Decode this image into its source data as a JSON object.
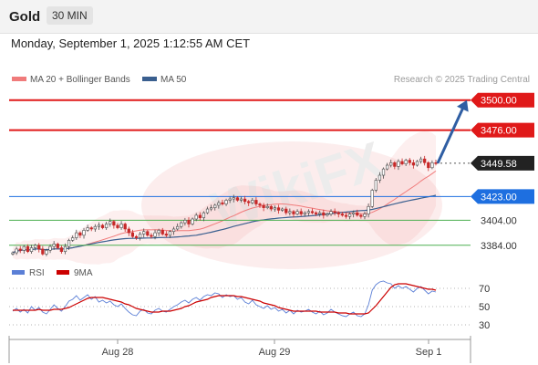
{
  "header": {
    "symbol": "Gold",
    "timeframe": "30 MIN"
  },
  "datetime": "Monday, September 1, 2025 1:12:55 AM CET",
  "legend": {
    "bollinger": {
      "label": "MA 20 + Bollinger Bands",
      "color": "#f07b7b"
    },
    "ma50": {
      "label": "MA 50",
      "color": "#3a5f8f"
    },
    "credit": "Research © 2025 Trading Central"
  },
  "indicator_legend": {
    "rsi": {
      "label": "RSI",
      "color": "#5b7fd6"
    },
    "ma9": {
      "label": "9MA",
      "color": "#cc0000"
    }
  },
  "watermark": "WikiFX",
  "chart_data": [
    {
      "type": "candlestick",
      "title": "",
      "y_range": [
        3370,
        3510
      ],
      "x_ticks": [
        "Aug 28",
        "Aug 29",
        "Sep 1"
      ],
      "levels": [
        {
          "value": 3500.0,
          "label": "3500.00",
          "color": "#e01919",
          "style": "resistance"
        },
        {
          "value": 3476.0,
          "label": "3476.00",
          "color": "#e01919",
          "style": "resistance"
        },
        {
          "value": 3449.58,
          "label": "3449.58",
          "color": "#222222",
          "style": "last-price"
        },
        {
          "value": 3423.0,
          "label": "3423.00",
          "color": "#1e6fe0",
          "style": "pivot"
        },
        {
          "value": 3404.0,
          "label": "3404.00",
          "color": "#4caf50",
          "style": "support"
        },
        {
          "value": 3384.0,
          "label": "3384.00",
          "color": "#4caf50",
          "style": "support"
        }
      ],
      "close_series": [
        3378,
        3381,
        3380,
        3383,
        3379,
        3382,
        3384,
        3381,
        3377,
        3380,
        3383,
        3385,
        3382,
        3379,
        3383,
        3388,
        3390,
        3394,
        3392,
        3396,
        3398,
        3397,
        3399,
        3400,
        3398,
        3401,
        3403,
        3400,
        3398,
        3401,
        3397,
        3394,
        3391,
        3390,
        3393,
        3395,
        3392,
        3391,
        3394,
        3396,
        3393,
        3392,
        3395,
        3397,
        3399,
        3402,
        3404,
        3401,
        3405,
        3408,
        3406,
        3410,
        3413,
        3414,
        3416,
        3418,
        3417,
        3420,
        3421,
        3422,
        3420,
        3421,
        3419,
        3418,
        3420,
        3417,
        3416,
        3414,
        3415,
        3413,
        3414,
        3412,
        3413,
        3410,
        3411,
        3409,
        3411,
        3409,
        3410,
        3411,
        3410,
        3409,
        3410,
        3408,
        3409,
        3411,
        3410,
        3409,
        3408,
        3407,
        3409,
        3410,
        3408,
        3407,
        3409,
        3415,
        3428,
        3436,
        3440,
        3445,
        3448,
        3450,
        3447,
        3451,
        3449,
        3452,
        3450,
        3448,
        3451,
        3453,
        3450,
        3446,
        3450,
        3449.58
      ],
      "forecast_arrow": {
        "from": 3449.58,
        "to": 3500
      }
    },
    {
      "type": "line",
      "title": "",
      "y_range": [
        20,
        80
      ],
      "y_ticks": [
        70,
        50,
        30
      ],
      "series": [
        {
          "name": "RSI",
          "values": [
            45,
            48,
            44,
            47,
            43,
            50,
            46,
            49,
            44,
            42,
            47,
            52,
            48,
            45,
            50,
            56,
            58,
            62,
            57,
            60,
            63,
            58,
            61,
            55,
            57,
            54,
            56,
            52,
            50,
            53,
            48,
            44,
            41,
            40,
            45,
            47,
            43,
            42,
            46,
            48,
            45,
            44,
            47,
            50,
            52,
            55,
            57,
            54,
            58,
            60,
            57,
            61,
            63,
            62,
            65,
            64,
            60,
            63,
            61,
            62,
            58,
            60,
            55,
            53,
            57,
            52,
            50,
            48,
            51,
            47,
            49,
            45,
            47,
            43,
            46,
            42,
            46,
            44,
            45,
            47,
            44,
            42,
            45,
            41,
            43,
            47,
            44,
            42,
            40,
            39,
            42,
            44,
            40,
            39,
            42,
            52,
            68,
            74,
            77,
            78,
            76,
            75,
            70,
            73,
            70,
            72,
            69,
            66,
            70,
            72,
            68,
            64,
            67,
            66
          ]
        },
        {
          "name": "9MA",
          "values": [
            46,
            46,
            46,
            46,
            46,
            46,
            46,
            47,
            46,
            46,
            46,
            47,
            47,
            47,
            48,
            49,
            51,
            53,
            55,
            57,
            59,
            60,
            60,
            60,
            60,
            59,
            58,
            57,
            56,
            55,
            53,
            52,
            50,
            48,
            47,
            46,
            45,
            44,
            44,
            44,
            45,
            45,
            45,
            46,
            47,
            48,
            50,
            51,
            53,
            55,
            56,
            57,
            58,
            60,
            61,
            62,
            62,
            62,
            62,
            62,
            61,
            61,
            60,
            59,
            58,
            57,
            56,
            54,
            53,
            52,
            51,
            49,
            48,
            47,
            46,
            45,
            45,
            45,
            45,
            45,
            45,
            45,
            44,
            44,
            44,
            44,
            44,
            43,
            43,
            43,
            42,
            42,
            42,
            42,
            42,
            43,
            47,
            51,
            56,
            61,
            66,
            71,
            74,
            75,
            75,
            75,
            74,
            73,
            72,
            71,
            70,
            69,
            69,
            68
          ]
        }
      ]
    }
  ]
}
